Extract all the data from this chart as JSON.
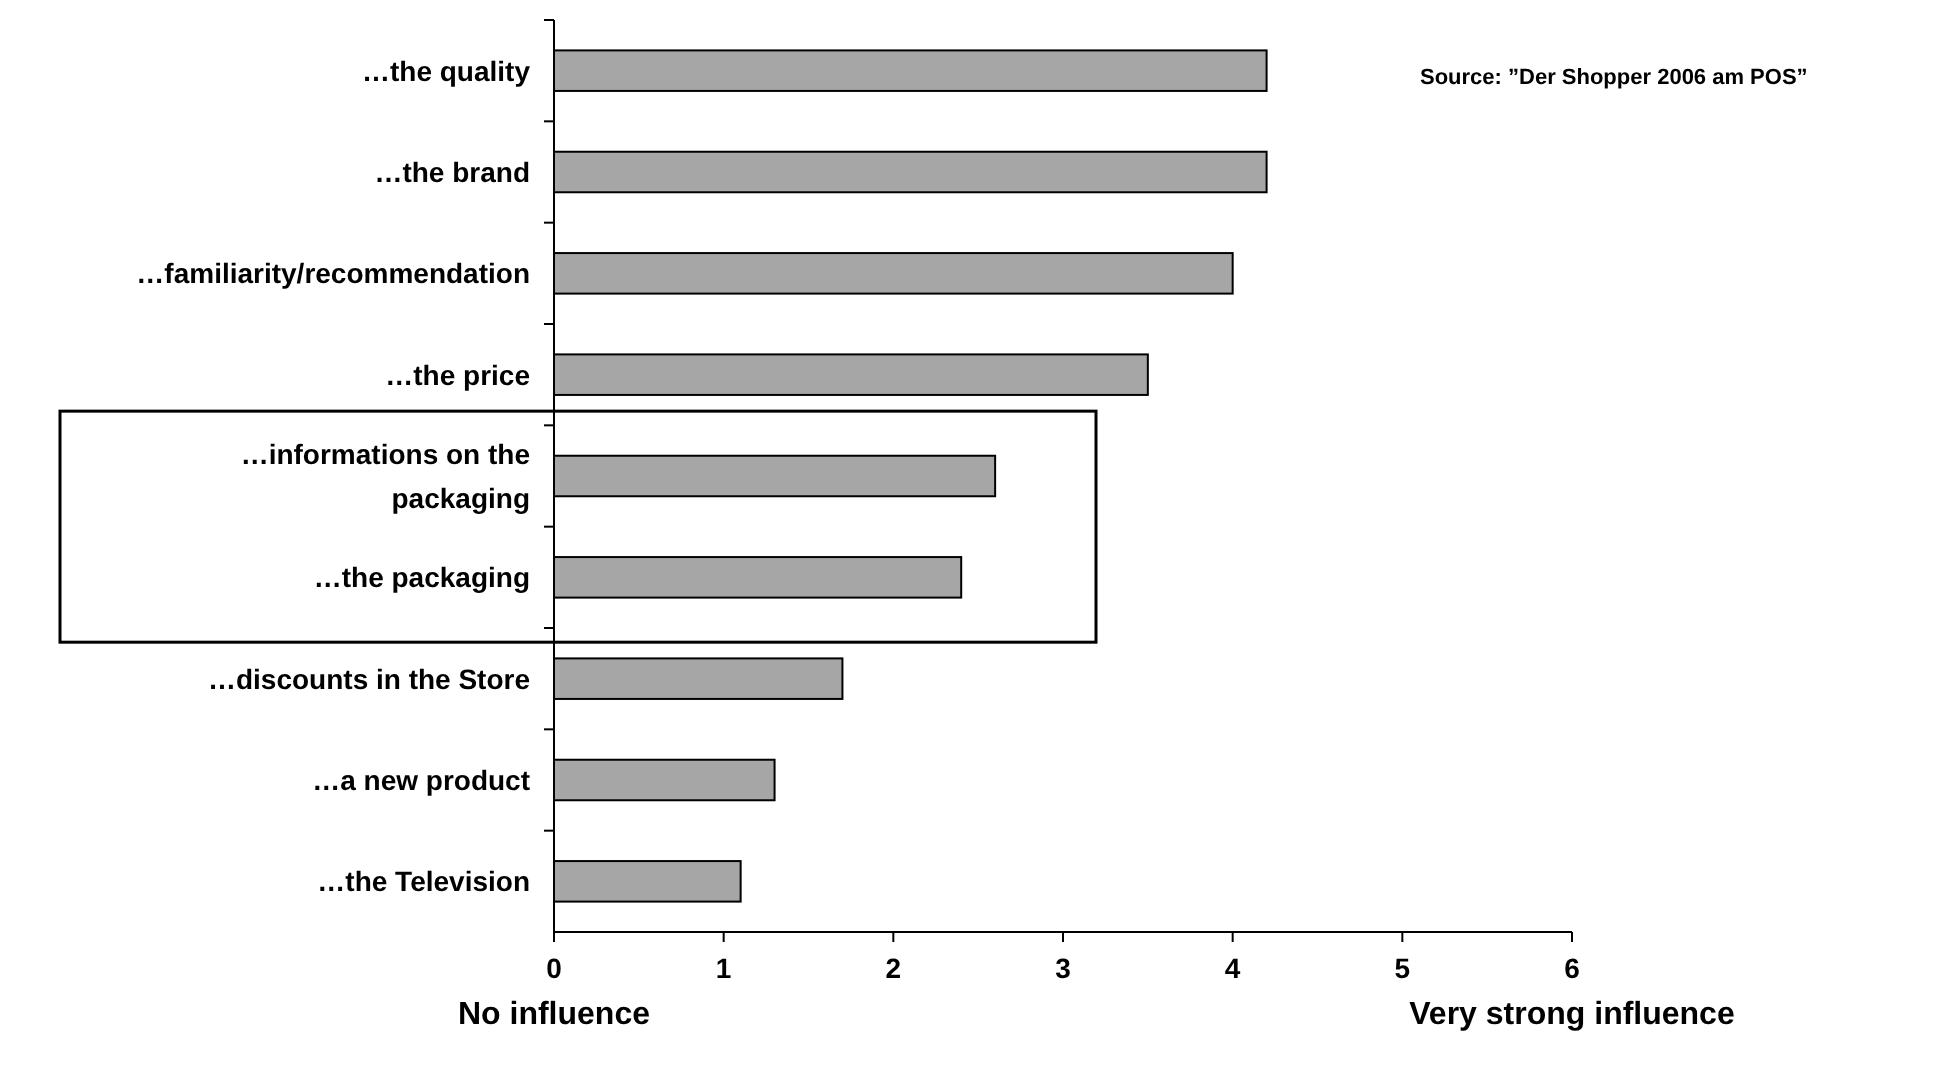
{
  "chart_data": {
    "type": "bar",
    "orientation": "horizontal",
    "categories": [
      "…the quality",
      "…the brand",
      "…familiarity/recommendation",
      "…the price",
      "…informations on the packaging",
      "…the packaging",
      "…discounts in the Store",
      "…a new product",
      "…the Television"
    ],
    "values": [
      4.2,
      4.2,
      4.0,
      3.5,
      2.6,
      2.4,
      1.7,
      1.3,
      1.1
    ],
    "color": "#a6a6a6",
    "xlim": [
      0,
      6
    ],
    "xticks": [
      0,
      1,
      2,
      3,
      4,
      5,
      6
    ],
    "grid": false,
    "annotations": [
      "Source: ”Der Shopper 2006 am POS”",
      "No influence",
      "Very strong influence"
    ]
  }
}
